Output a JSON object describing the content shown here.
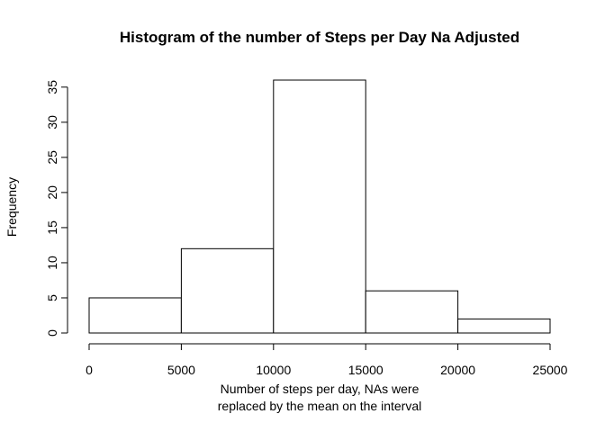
{
  "chart_data": {
    "type": "bar",
    "variant": "histogram",
    "title": "Histogram of the number of Steps per Day Na Adjusted",
    "xlabel": [
      "Number of steps per day, NAs were",
      "replaced by the mean on the interval"
    ],
    "ylabel": "Frequency",
    "bins": [
      {
        "from": 0,
        "to": 5000,
        "count": 5
      },
      {
        "from": 5000,
        "to": 10000,
        "count": 12
      },
      {
        "from": 10000,
        "to": 15000,
        "count": 36
      },
      {
        "from": 15000,
        "to": 20000,
        "count": 6
      },
      {
        "from": 20000,
        "to": 25000,
        "count": 2
      }
    ],
    "xlim": [
      0,
      25000
    ],
    "ylim": [
      0,
      36
    ],
    "x_ticks": [
      "0",
      "5000",
      "10000",
      "15000",
      "20000",
      "25000"
    ],
    "y_ticks": [
      "0",
      "5",
      "10",
      "15",
      "20",
      "25",
      "30",
      "35"
    ],
    "bar_fill": "#ffffff",
    "bar_stroke": "#000000",
    "grid": false,
    "legend": "none"
  }
}
